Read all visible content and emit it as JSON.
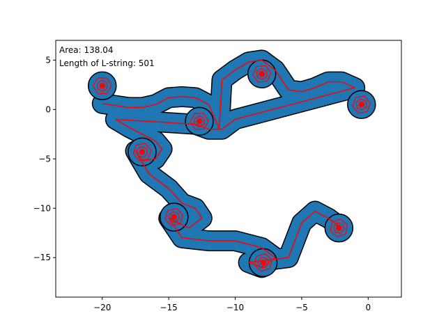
{
  "chart_data": {
    "type": "line",
    "title": "",
    "xlabel": "",
    "ylabel": "",
    "xlim": [
      -23.5,
      2.5
    ],
    "ylim": [
      -19,
      7
    ],
    "x_ticks": [
      -20,
      -15,
      -10,
      -5,
      0
    ],
    "y_ticks": [
      5,
      0,
      -5,
      -10,
      -15
    ],
    "x_tick_labels": [
      "−20",
      "−15",
      "−10",
      "−5",
      "0"
    ],
    "y_tick_labels": [
      "5",
      "0",
      "−5",
      "−10",
      "−15"
    ],
    "grid": false,
    "annotations": [
      {
        "label": "Area: 138.04"
      },
      {
        "label": "Length of L-string: 501"
      }
    ],
    "colors": {
      "fill": "#1f77b4",
      "outline": "#000000",
      "path": "#ff0000",
      "background": "#ffffff"
    },
    "series": [
      {
        "values": [
          [
            -20,
            0.6
          ],
          [
            -19,
            0.4
          ],
          [
            -18,
            0.2
          ],
          [
            -17,
            0.2
          ],
          [
            -16,
            0.5
          ],
          [
            -15,
            1.2
          ],
          [
            -14,
            1.3
          ],
          [
            -13,
            1.2
          ],
          [
            -12,
            0.5
          ],
          [
            -11.5,
            -1
          ],
          [
            -11.2,
            -2
          ],
          [
            -11,
            3
          ],
          [
            -10,
            4
          ],
          [
            -9,
            4.8
          ],
          [
            -8,
            5
          ],
          [
            -7,
            4
          ],
          [
            -6,
            2
          ],
          [
            -5,
            1.8
          ],
          [
            -4,
            2.2
          ],
          [
            -3,
            2.8
          ],
          [
            -2,
            2.8
          ],
          [
            -1,
            2.2
          ],
          [
            -10,
            -1
          ],
          [
            -11,
            -2
          ],
          [
            -12,
            -2
          ],
          [
            -13,
            -1.5
          ],
          [
            -19,
            -1
          ],
          [
            -18,
            -1.8
          ],
          [
            -17,
            -2.5
          ],
          [
            -16,
            -3.2
          ],
          [
            -15.5,
            -4
          ],
          [
            -16,
            -5
          ],
          [
            -17,
            -5.2
          ],
          [
            -17.5,
            -4.2
          ],
          [
            -16.5,
            -6.5
          ],
          [
            -15,
            -8
          ],
          [
            -14,
            -9.5
          ],
          [
            -13,
            -10
          ],
          [
            -12.5,
            -11
          ],
          [
            -13.5,
            -12
          ],
          [
            -15,
            -11
          ],
          [
            -14,
            -13
          ],
          [
            -12,
            -13.3
          ],
          [
            -10,
            -13.3
          ],
          [
            -8,
            -14
          ],
          [
            -7,
            -15
          ],
          [
            -8,
            -16
          ],
          [
            -9,
            -15.5
          ],
          [
            -6,
            -15
          ],
          [
            -5,
            -11.5
          ],
          [
            -4,
            -10.3
          ],
          [
            -3,
            -11
          ],
          [
            -2,
            -12
          ]
        ]
      }
    ],
    "spiral_centers": [
      [
        -20,
        2.4
      ],
      [
        -12.7,
        -1.2
      ],
      [
        -8,
        3.6
      ],
      [
        -0.5,
        0.5
      ],
      [
        -17,
        -4.3
      ],
      [
        -14.6,
        -10.9
      ],
      [
        -7.9,
        -15.5
      ],
      [
        -2.2,
        -12
      ]
    ]
  }
}
